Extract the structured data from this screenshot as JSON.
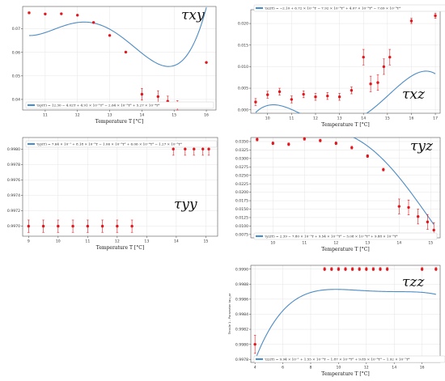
{
  "chart_data": [
    {
      "id": "xy",
      "type": "scatter",
      "symbol": "τxy",
      "xlabel": "Temperature T [°C]",
      "ylabel": "",
      "xlim": [
        10.3,
        16.3
      ],
      "ylim": [
        0.0355,
        0.0795
      ],
      "xticks": [
        11,
        12,
        13,
        14,
        15,
        16
      ],
      "yticks": [
        0.04,
        0.05,
        0.06,
        0.07
      ],
      "ytick_labels": [
        "0.04",
        "0.05",
        "0.06",
        "0.07"
      ],
      "legend_placement": "bottom-left",
      "grid": true,
      "fit_label": "τxy(T) = 12.30 − 4.02T + 4.91 × 10⁻¹T² − 2.64 × 10⁻²T³ + 5.27 × 10⁻⁴T⁴",
      "fit_coeffs": [
        12.3,
        -4.02,
        0.491,
        -0.0264,
        0.000527
      ],
      "points": [
        {
          "x": 10.5,
          "y": 0.0768,
          "err": 0
        },
        {
          "x": 11.0,
          "y": 0.0763,
          "err": 0
        },
        {
          "x": 11.5,
          "y": 0.0764,
          "err": 0
        },
        {
          "x": 12.0,
          "y": 0.0758,
          "err": 0
        },
        {
          "x": 12.5,
          "y": 0.0727,
          "err": 0
        },
        {
          "x": 13.0,
          "y": 0.0672,
          "err": 0
        },
        {
          "x": 13.5,
          "y": 0.0601,
          "err": 0
        },
        {
          "x": 14.0,
          "y": 0.0422,
          "err": 0.0025
        },
        {
          "x": 14.5,
          "y": 0.0412,
          "err": 0.0025
        },
        {
          "x": 14.8,
          "y": 0.0392,
          "err": 0.0022
        },
        {
          "x": 15.1,
          "y": 0.0375,
          "err": 0.002
        },
        {
          "x": 16.0,
          "y": 0.0557,
          "err": 0
        }
      ]
    },
    {
      "id": "xz",
      "type": "scatter",
      "symbol": "τxz",
      "xlabel": "Temperature T [°C]",
      "ylabel": "",
      "xlim": [
        9.3,
        17.2
      ],
      "ylim": [
        -0.0008,
        0.0232
      ],
      "xticks": [
        10,
        11,
        12,
        13,
        14,
        15,
        16,
        17
      ],
      "yticks": [
        0.0,
        0.005,
        0.01,
        0.015,
        0.02
      ],
      "ytick_labels": [
        "0.000",
        "0.005",
        "0.010",
        "0.015",
        "0.020"
      ],
      "legend_placement": "top-center",
      "grid": true,
      "fit_label": "τxz(T) = −2.10 + 6.72 × 10⁻¹T − 7.92 × 10⁻²T² + 4.07 × 10⁻³T³ − 7.69 × 10⁻⁵T⁴",
      "fit_coeffs": [
        -2.1,
        0.672,
        -0.0792,
        0.00407,
        -7.69e-05
      ],
      "points": [
        {
          "x": 9.5,
          "y": 0.0018,
          "err": 0.0008
        },
        {
          "x": 10.0,
          "y": 0.0035,
          "err": 0.0008
        },
        {
          "x": 10.5,
          "y": 0.0042,
          "err": 0.0008
        },
        {
          "x": 11.0,
          "y": 0.0024,
          "err": 0.0008
        },
        {
          "x": 11.5,
          "y": 0.0036,
          "err": 0.0008
        },
        {
          "x": 12.0,
          "y": 0.003,
          "err": 0.0008
        },
        {
          "x": 12.5,
          "y": 0.0032,
          "err": 0.0008
        },
        {
          "x": 13.0,
          "y": 0.003,
          "err": 0.0008
        },
        {
          "x": 13.5,
          "y": 0.0045,
          "err": 0.0008
        },
        {
          "x": 14.0,
          "y": 0.0122,
          "err": 0.0018
        },
        {
          "x": 14.3,
          "y": 0.006,
          "err": 0.0018
        },
        {
          "x": 14.6,
          "y": 0.0063,
          "err": 0.0018
        },
        {
          "x": 14.85,
          "y": 0.01,
          "err": 0.0018
        },
        {
          "x": 15.1,
          "y": 0.0122,
          "err": 0.0018
        },
        {
          "x": 16.0,
          "y": 0.0206,
          "err": 0.0006
        },
        {
          "x": 17.0,
          "y": 0.0218,
          "err": 0.0006
        }
      ]
    },
    {
      "id": "yy",
      "type": "scatter",
      "symbol": "τyy",
      "xlabel": "Temperature T [°C]",
      "ylabel": "",
      "xlim": [
        8.8,
        15.4
      ],
      "ylim": [
        0.99687,
        0.99815
      ],
      "xticks": [
        9,
        10,
        11,
        12,
        13,
        14,
        15
      ],
      "yticks": [
        0.997,
        0.9972,
        0.9974,
        0.9976,
        0.9978,
        0.998
      ],
      "ytick_labels": [
        "0.9970",
        "0.9972",
        "0.9974",
        "0.9976",
        "0.9978",
        "0.9980"
      ],
      "legend_placement": "top-left",
      "grid": true,
      "fit_label": "τyy(T) = 7.64 × 10⁻¹ + 8.18 × 10⁻²T − 1.06 × 10⁻²T² + 6.06 × 10⁻⁴T³ − 1.27 × 10⁻⁵T⁴",
      "fit_coeffs": [
        0.764,
        0.0818,
        -0.0106,
        0.000606,
        -1.27e-05
      ],
      "points": [
        {
          "x": 9.0,
          "y": 0.997,
          "err": 8e-05
        },
        {
          "x": 9.5,
          "y": 0.997,
          "err": 8e-05
        },
        {
          "x": 10.0,
          "y": 0.997,
          "err": 8e-05
        },
        {
          "x": 10.5,
          "y": 0.997,
          "err": 8e-05
        },
        {
          "x": 11.0,
          "y": 0.997,
          "err": 8e-05
        },
        {
          "x": 11.5,
          "y": 0.997,
          "err": 8e-05
        },
        {
          "x": 12.0,
          "y": 0.997,
          "err": 8e-05
        },
        {
          "x": 12.5,
          "y": 0.997,
          "err": 8e-05
        },
        {
          "x": 13.9,
          "y": 0.998,
          "err": 8e-05
        },
        {
          "x": 14.3,
          "y": 0.998,
          "err": 8e-05
        },
        {
          "x": 14.6,
          "y": 0.998,
          "err": 8e-05
        },
        {
          "x": 14.9,
          "y": 0.998,
          "err": 8e-05
        },
        {
          "x": 15.1,
          "y": 0.998,
          "err": 8e-05
        }
      ]
    },
    {
      "id": "yz",
      "type": "scatter",
      "symbol": "τyz",
      "xlabel": "Temperature T [°C]",
      "ylabel": "",
      "xlim": [
        9.3,
        15.3
      ],
      "ylim": [
        0.0065,
        0.0362
      ],
      "xticks": [
        10,
        11,
        12,
        13,
        14,
        15
      ],
      "yticks": [
        0.0075,
        0.01,
        0.0125,
        0.015,
        0.0175,
        0.02,
        0.0225,
        0.025,
        0.0275,
        0.03,
        0.0325,
        0.035
      ],
      "ytick_labels": [
        "0.0075",
        "0.0100",
        "0.0125",
        "0.0150",
        "0.0175",
        "0.0200",
        "0.0225",
        "0.0250",
        "0.0275",
        "0.0300",
        "0.0325",
        "0.0350"
      ],
      "legend_placement": "bottom-left",
      "grid": true,
      "fit_label": "τyz(T) = 2.39 − 7.80 × 10⁻¹T + 9.54 × 10⁻²T² − 5.08 × 10⁻³T³ + 9.88 × 10⁻⁵T⁴",
      "fit_coeffs": [
        2.39,
        -0.78,
        0.0954,
        -0.00508,
        9.88e-05
      ],
      "points": [
        {
          "x": 9.5,
          "y": 0.0356,
          "err": 0.0004
        },
        {
          "x": 10.0,
          "y": 0.0345,
          "err": 0.0004
        },
        {
          "x": 10.5,
          "y": 0.0342,
          "err": 0.0004
        },
        {
          "x": 11.0,
          "y": 0.0358,
          "err": 0.0004
        },
        {
          "x": 11.5,
          "y": 0.0353,
          "err": 0.0004
        },
        {
          "x": 12.0,
          "y": 0.0345,
          "err": 0.0004
        },
        {
          "x": 12.5,
          "y": 0.0332,
          "err": 0.0004
        },
        {
          "x": 13.0,
          "y": 0.0307,
          "err": 0.0004
        },
        {
          "x": 13.5,
          "y": 0.0267,
          "err": 0.0004
        },
        {
          "x": 14.0,
          "y": 0.0158,
          "err": 0.0022
        },
        {
          "x": 14.3,
          "y": 0.0155,
          "err": 0.0022
        },
        {
          "x": 14.6,
          "y": 0.0128,
          "err": 0.0022
        },
        {
          "x": 14.9,
          "y": 0.0112,
          "err": 0.0022
        },
        {
          "x": 15.1,
          "y": 0.0088,
          "err": 0.0022
        }
      ]
    },
    {
      "id": "zz",
      "type": "scatter",
      "symbol": "τzz",
      "xlabel": "Temperature T [°C]",
      "ylabel": "Tensile 1 - Parameter tau_zz",
      "xlim": [
        3.7,
        17.3
      ],
      "ylim": [
        0.99776,
        0.99905
      ],
      "xticks": [
        4,
        6,
        8,
        10,
        12,
        14,
        16
      ],
      "yticks": [
        0.9978,
        0.998,
        0.9982,
        0.9984,
        0.9986,
        0.9988,
        0.999
      ],
      "ytick_labels": [
        "0.9978",
        "0.9980",
        "0.9982",
        "0.9984",
        "0.9986",
        "0.9988",
        "0.9990"
      ],
      "legend_placement": "bottom-left",
      "grid": true,
      "fit_label": "τzz(T) = 9.94 × 10⁻¹ + 1.55 × 10⁻³T − 1.87 × 10⁻⁴T² + 9.85 × 10⁻⁶T³ − 1.92 × 10⁻⁷T⁴",
      "fit_coeffs": [
        0.994,
        0.00155,
        -0.000187,
        9.85e-06,
        -1.92e-07
      ],
      "points": [
        {
          "x": 4.0,
          "y": 0.998,
          "err": 0.00012
        },
        {
          "x": 9.0,
          "y": 0.999,
          "err": 2e-05
        },
        {
          "x": 9.5,
          "y": 0.999,
          "err": 2e-05
        },
        {
          "x": 10.0,
          "y": 0.999,
          "err": 2e-05
        },
        {
          "x": 10.5,
          "y": 0.999,
          "err": 2e-05
        },
        {
          "x": 11.0,
          "y": 0.999,
          "err": 2e-05
        },
        {
          "x": 11.5,
          "y": 0.999,
          "err": 2e-05
        },
        {
          "x": 12.0,
          "y": 0.999,
          "err": 2e-05
        },
        {
          "x": 12.5,
          "y": 0.999,
          "err": 2e-05
        },
        {
          "x": 13.0,
          "y": 0.999,
          "err": 2e-05
        },
        {
          "x": 13.5,
          "y": 0.999,
          "err": 2e-05
        },
        {
          "x": 16.0,
          "y": 0.999,
          "err": 2e-05
        },
        {
          "x": 17.0,
          "y": 0.999,
          "err": 2e-05
        }
      ]
    }
  ],
  "colors": {
    "curve": "#4c8cc4",
    "points": "#e2171d",
    "grid": "#e4e4e4"
  }
}
